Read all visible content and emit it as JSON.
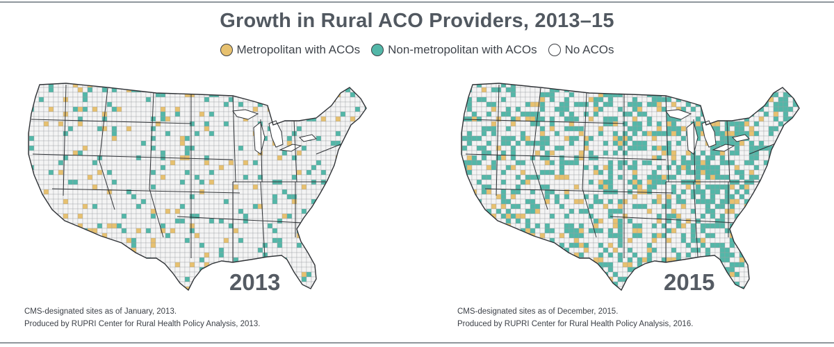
{
  "title": "Growth in Rural ACO Providers, 2013–15",
  "legend": [
    {
      "label": "Metropolitan with ACOs",
      "color": "#e7c16f"
    },
    {
      "label": "Non-metropolitan with ACOs",
      "color": "#53b7a8"
    },
    {
      "label": "No ACOs",
      "color": "#ffffff"
    }
  ],
  "maps": [
    {
      "year": "2013",
      "note_line1": "CMS-designated sites as of January, 2013.",
      "note_line2": "Produced by RUPRI Center for Rural Health Policy Analysis, 2013."
    },
    {
      "year": "2015",
      "note_line1": "CMS-designated sites as of December, 2015.",
      "note_line2": "Produced by RUPRI Center for Rural Health Policy Analysis, 2016."
    }
  ],
  "colors": {
    "metro": "#e7c16f",
    "nonmetro": "#53b7a8",
    "none": "#f4f4f4",
    "border": "#2f3236"
  }
}
